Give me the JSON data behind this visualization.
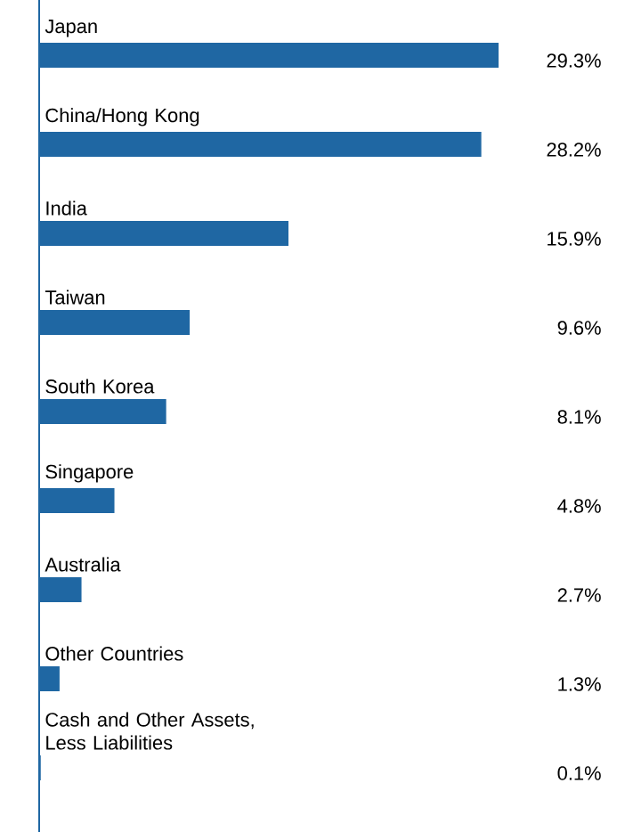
{
  "chart_data": {
    "type": "bar",
    "orientation": "horizontal",
    "categories": [
      "Japan",
      "China/Hong Kong",
      "India",
      "Taiwan",
      "South Korea",
      "Singapore",
      "Australia",
      "Other Countries",
      "Cash and Other Assets, Less Liabilities"
    ],
    "values": [
      29.3,
      28.2,
      15.9,
      9.6,
      8.1,
      4.8,
      2.7,
      1.3,
      0.1
    ],
    "value_labels": [
      "29.3%",
      "28.2%",
      "15.9%",
      "9.6%",
      "8.1%",
      "4.8%",
      "2.7%",
      "1.3%",
      "0.1%"
    ],
    "color": "#1f67a3"
  }
}
